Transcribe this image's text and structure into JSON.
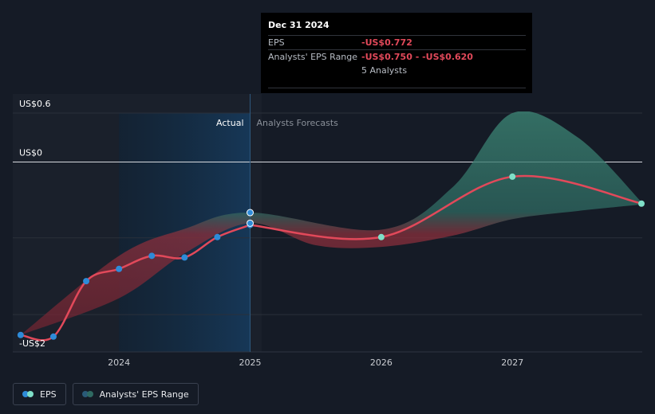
{
  "chart_data": {
    "type": "line",
    "y_axis_labels": [
      "US$0.6",
      "US$0",
      "-US$2"
    ],
    "x_ticks": [
      {
        "label": "2024",
        "x": 2024.0
      },
      {
        "label": "2025",
        "x": 2025.0
      },
      {
        "label": "2026",
        "x": 2026.0
      },
      {
        "label": "2027",
        "x": 2027.0
      }
    ],
    "xlim": [
      2023.19,
      2027.99
    ],
    "ylim": [
      -2.22,
      0.6
    ],
    "divider_x": 2025.0,
    "highlight_start_x": 2024.0,
    "region_labels": {
      "actual": "Actual",
      "forecast": "Analysts Forecasts"
    },
    "series": [
      {
        "name": "EPS",
        "color": "#e2495a",
        "points": [
          {
            "x": 2023.25,
            "y": -2.12
          },
          {
            "x": 2023.5,
            "y": -2.14
          },
          {
            "x": 2023.75,
            "y": -1.46
          },
          {
            "x": 2024.0,
            "y": -1.31
          },
          {
            "x": 2024.25,
            "y": -1.15
          },
          {
            "x": 2024.5,
            "y": -1.17
          },
          {
            "x": 2024.75,
            "y": -0.92
          },
          {
            "x": 2025.0,
            "y": -0.772
          }
        ],
        "forecast_points": [
          {
            "x": 2025.0,
            "y": -0.772
          },
          {
            "x": 2026.0,
            "y": -0.92
          },
          {
            "x": 2027.0,
            "y": -0.18
          },
          {
            "x": 2027.99,
            "y": -0.51
          }
        ]
      }
    ],
    "range_band": {
      "name": "Analysts' EPS Range",
      "upper": [
        {
          "x": 2023.25,
          "y": -2.12
        },
        {
          "x": 2024.0,
          "y": -1.15
        },
        {
          "x": 2024.5,
          "y": -0.82
        },
        {
          "x": 2025.0,
          "y": -0.62
        },
        {
          "x": 2026.0,
          "y": -0.83
        },
        {
          "x": 2026.55,
          "y": -0.3
        },
        {
          "x": 2027.0,
          "y": 0.6
        },
        {
          "x": 2027.5,
          "y": 0.3
        },
        {
          "x": 2027.99,
          "y": -0.5
        }
      ],
      "lower": [
        {
          "x": 2027.99,
          "y": -0.52
        },
        {
          "x": 2027.5,
          "y": -0.6
        },
        {
          "x": 2027.0,
          "y": -0.7
        },
        {
          "x": 2026.55,
          "y": -0.9
        },
        {
          "x": 2026.0,
          "y": -1.04
        },
        {
          "x": 2025.5,
          "y": -1.02
        },
        {
          "x": 2025.0,
          "y": -0.75
        },
        {
          "x": 2024.5,
          "y": -1.12
        },
        {
          "x": 2024.0,
          "y": -1.67
        },
        {
          "x": 2023.25,
          "y": -2.12
        }
      ]
    },
    "range_markers": [
      {
        "x": 2025.0,
        "y": -0.62
      },
      {
        "x": 2025.0,
        "y": -0.75
      }
    ]
  },
  "tooltip": {
    "date": "Dec 31 2024",
    "eps_label": "EPS",
    "eps_value": "-US$0.772",
    "range_label": "Analysts' EPS Range",
    "range_value": "-US$0.750 - -US$0.620",
    "analysts": "5 Analysts"
  },
  "legend": {
    "eps": "EPS",
    "range": "Analysts' EPS Range"
  },
  "colors": {
    "background": "#151b26",
    "eps_line": "#e2495a",
    "actual_dot": "#2e8bd8",
    "forecast_dot": "#7fe0c8",
    "band_red": "#8c2f3c",
    "band_teal": "#2f6a62",
    "highlight": "#13304a"
  }
}
